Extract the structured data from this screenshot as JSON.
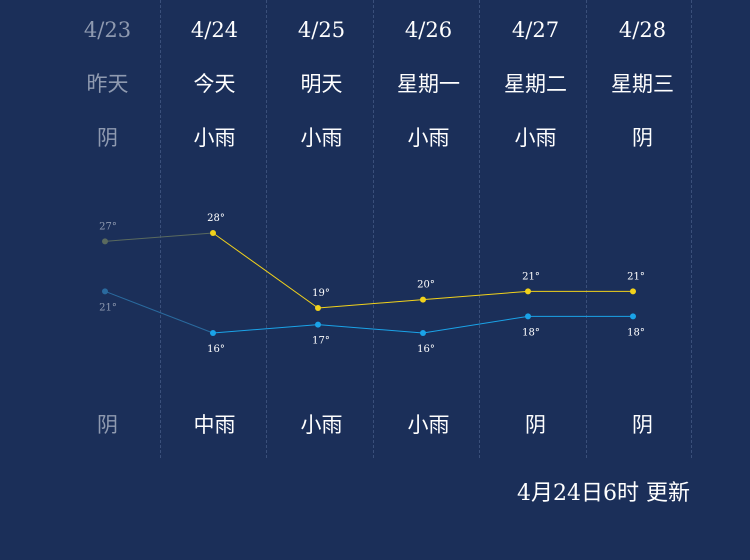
{
  "days": [
    {
      "date": "4/23",
      "label": "昨天",
      "weather_day": "阴",
      "weather_night": "阴",
      "past": true
    },
    {
      "date": "4/24",
      "label": "今天",
      "weather_day": "小雨",
      "weather_night": "中雨",
      "past": false
    },
    {
      "date": "4/25",
      "label": "明天",
      "weather_day": "小雨",
      "weather_night": "小雨",
      "past": false
    },
    {
      "date": "4/26",
      "label": "星期一",
      "weather_day": "小雨",
      "weather_night": "小雨",
      "past": false
    },
    {
      "date": "4/27",
      "label": "星期二",
      "weather_day": "小雨",
      "weather_night": "阴",
      "past": false
    },
    {
      "date": "4/28",
      "label": "星期三",
      "weather_day": "阴",
      "weather_night": "阴",
      "past": false
    }
  ],
  "chart_data": {
    "type": "line",
    "categories": [
      "4/23",
      "4/24",
      "4/25",
      "4/26",
      "4/27",
      "4/28"
    ],
    "series": [
      {
        "values": [
          27,
          28,
          19,
          20,
          21,
          21
        ],
        "color": "#f2d21b"
      },
      {
        "values": [
          21,
          16,
          17,
          16,
          18,
          18
        ],
        "color": "#1aa3e8"
      }
    ],
    "value_suffix": "°",
    "past_point_color": "#5a6a5e",
    "past_low_color": "#2a6a9e"
  },
  "footer": {
    "updated": "4月24日6时 更新"
  }
}
